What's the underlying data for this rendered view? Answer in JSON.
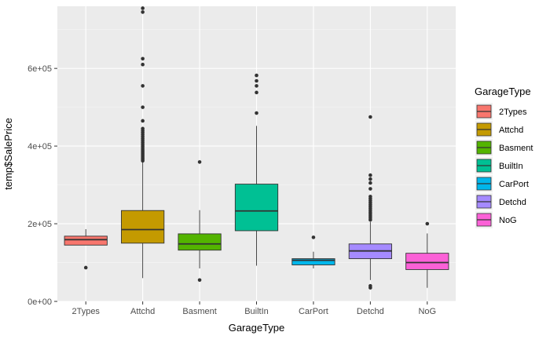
{
  "chart_data": {
    "type": "boxplot",
    "title": "",
    "xlabel": "GarageType",
    "ylabel": "temp$SalePrice",
    "ylim": [
      0,
      760000
    ],
    "y_ticks": [
      {
        "value": 0,
        "label": "0e+00"
      },
      {
        "value": 200000,
        "label": "2e+05"
      },
      {
        "value": 400000,
        "label": "4e+05"
      },
      {
        "value": 600000,
        "label": "6e+05"
      }
    ],
    "grid": true,
    "legend": {
      "title": "GarageType",
      "position": "right"
    },
    "categories": [
      "2Types",
      "Attchd",
      "Basment",
      "BuiltIn",
      "CarPort",
      "Detchd",
      "NoG"
    ],
    "series": [
      {
        "category": "2Types",
        "color": "#F8766D",
        "whisker_low": 145000,
        "q1": 145000,
        "median": 159000,
        "q3": 168000,
        "whisker_high": 186000,
        "outliers": [
          87000
        ]
      },
      {
        "category": "Attchd",
        "color": "#C49A00",
        "whisker_low": 60000,
        "q1": 150000,
        "median": 185000,
        "q3": 234000,
        "whisker_high": 360000,
        "outliers": [
          362000,
          366000,
          370000,
          374000,
          378000,
          382000,
          386000,
          390000,
          395000,
          400000,
          405000,
          410000,
          415000,
          420000,
          425000,
          430000,
          435000,
          440000,
          445000,
          465000,
          500000,
          555000,
          610000,
          625000,
          745000,
          755000
        ]
      },
      {
        "category": "Basment",
        "color": "#53B400",
        "whisker_low": 85000,
        "q1": 132000,
        "median": 148000,
        "q3": 174000,
        "whisker_high": 235000,
        "outliers": [
          55000,
          359000
        ]
      },
      {
        "category": "BuiltIn",
        "color": "#00C094",
        "whisker_low": 92000,
        "q1": 182000,
        "median": 233000,
        "q3": 302000,
        "whisker_high": 452000,
        "outliers": [
          485000,
          538000,
          555000,
          568000,
          582000
        ]
      },
      {
        "category": "CarPort",
        "color": "#00B6EB",
        "whisker_low": 85000,
        "q1": 94000,
        "median": 106000,
        "q3": 110000,
        "whisker_high": 128000,
        "outliers": [
          165000
        ]
      },
      {
        "category": "Detchd",
        "color": "#A58AFF",
        "whisker_low": 55000,
        "q1": 110000,
        "median": 130000,
        "q3": 148000,
        "whisker_high": 205000,
        "outliers": [
          35000,
          40000,
          210000,
          215000,
          220000,
          225000,
          230000,
          235000,
          240000,
          245000,
          250000,
          255000,
          260000,
          265000,
          270000,
          290000,
          305000,
          315000,
          325000,
          475000
        ]
      },
      {
        "category": "NoG",
        "color": "#FB61D7",
        "whisker_low": 35000,
        "q1": 82000,
        "median": 100000,
        "q3": 124000,
        "whisker_high": 175000,
        "outliers": [
          200000
        ]
      }
    ]
  }
}
